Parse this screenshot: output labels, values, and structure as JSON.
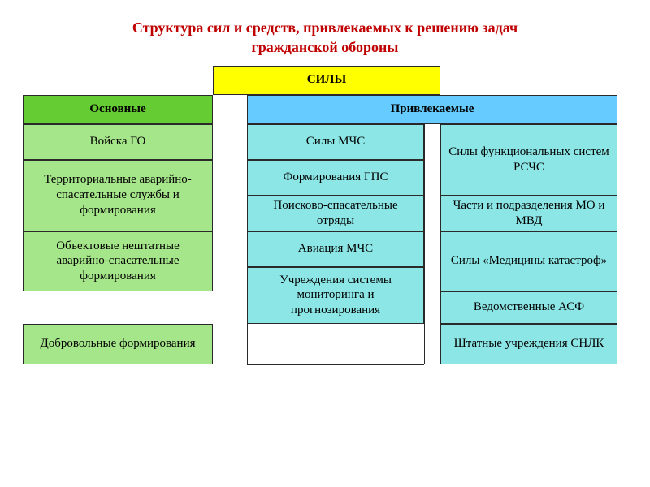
{
  "title_color": "#c00000",
  "title_line1": "Структура сил и средств, привлекаемых к решению задач",
  "title_line2": "гражданской обороны",
  "colors": {
    "yellow": "#ffff00",
    "green_header": "#66cc33",
    "green_cell": "#a6e68a",
    "blue_header": "#66ccff",
    "blue_cell": "#8ce6e6",
    "border": "#2a2a2a",
    "white": "#ffffff"
  },
  "root_header": "СИЛЫ",
  "col_main_header": "Основные",
  "col_attr_header": "Привлекаемые",
  "heights": {
    "root": 36,
    "sub": 36,
    "r1": 44,
    "r2": 70,
    "r3": 44,
    "r4": 44,
    "r5": 56,
    "r6": 40,
    "r7": 50
  },
  "main": {
    "r1": "Войска ГО",
    "r2": "Территориальные аварийно-спасательные службы и формирования",
    "r3": "Объектовые нештатные аварийно-спасательные формирования",
    "r4": "Добровольные формирования"
  },
  "left": {
    "r1": "Силы МЧС",
    "r2": "Формирования ГПС",
    "r3": "Поисково-спасательные отряды",
    "r4": "Авиация МЧС",
    "r5": "Учреждения системы мониторинга и прогнозирования"
  },
  "right": {
    "r1": "Силы функциональных систем РСЧС",
    "r2": "Части и подразделения МО и МВД",
    "r3": "Силы «Медицины катастроф»",
    "r4": "Ведомственные АСФ",
    "r5": "Штатные учреждения СНЛК"
  }
}
